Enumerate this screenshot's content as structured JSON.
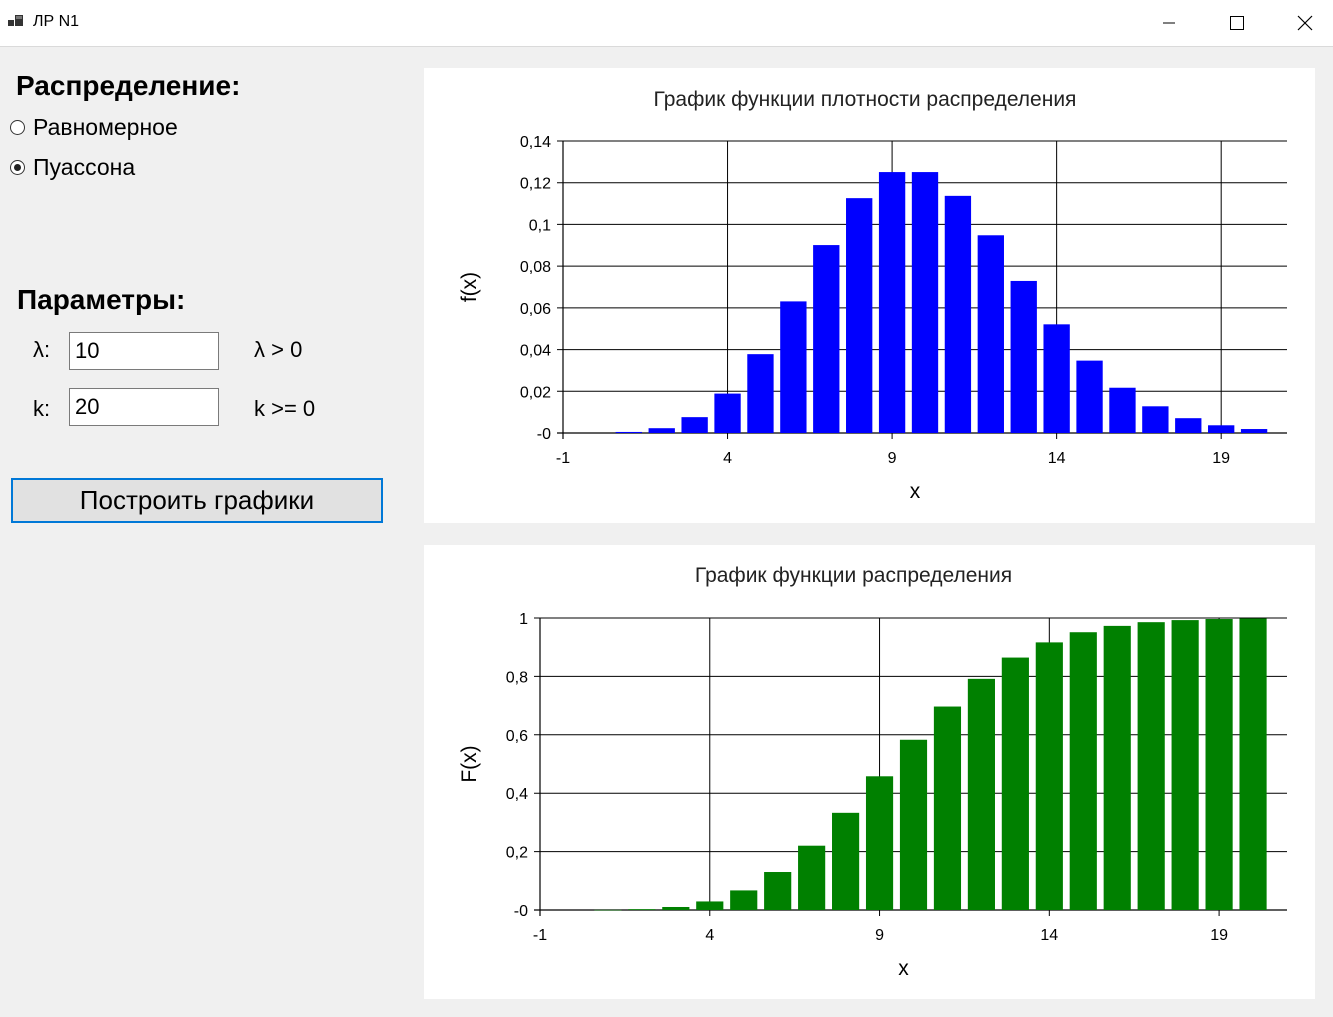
{
  "window": {
    "title": "ЛР N1"
  },
  "distribution": {
    "heading": "Распределение:",
    "options": [
      {
        "label": "Равномерное",
        "checked": false
      },
      {
        "label": "Пуассона",
        "checked": true
      }
    ]
  },
  "params": {
    "heading": "Параметры:",
    "lambda": {
      "label": "λ:",
      "value": "10",
      "hint": "λ > 0"
    },
    "k": {
      "label": "k:",
      "value": "20",
      "hint": "k >= 0"
    }
  },
  "build_button": "Построить графики",
  "charts": [
    {
      "type": "bar",
      "title": "График функции плотности распределения",
      "xlabel": "x",
      "ylabel": "f(x)",
      "color": "#0000ff",
      "x": [
        1,
        2,
        3,
        4,
        5,
        6,
        7,
        8,
        9,
        10,
        11,
        12,
        13,
        14,
        15,
        16,
        17,
        18,
        19,
        20
      ],
      "values": [
        0.0005,
        0.0023,
        0.0076,
        0.0189,
        0.0378,
        0.0631,
        0.0901,
        0.1126,
        0.1251,
        0.1251,
        0.1137,
        0.0948,
        0.0729,
        0.0521,
        0.0347,
        0.0217,
        0.0128,
        0.0071,
        0.0037,
        0.0019
      ],
      "xlim": [
        -1,
        21
      ],
      "ylim": [
        0,
        0.14
      ],
      "xticks": [
        -1,
        4,
        9,
        14,
        19
      ],
      "yticks": [
        0,
        0.02,
        0.04,
        0.06,
        0.08,
        0.1,
        0.12,
        0.14
      ],
      "ytick_labels": [
        "-0",
        "0,02",
        "0,04",
        "0,06",
        "0,08",
        "0,1",
        "0,12",
        "0,14"
      ],
      "grid": true
    },
    {
      "type": "bar",
      "title": "График функции распределения",
      "xlabel": "x",
      "ylabel": "F(x)",
      "color": "#008000",
      "x": [
        1,
        2,
        3,
        4,
        5,
        6,
        7,
        8,
        9,
        10,
        11,
        12,
        13,
        14,
        15,
        16,
        17,
        18,
        19,
        20
      ],
      "values": [
        0.0005,
        0.0028,
        0.0103,
        0.0293,
        0.0671,
        0.1301,
        0.2202,
        0.3328,
        0.4579,
        0.583,
        0.6968,
        0.7916,
        0.8645,
        0.9165,
        0.9513,
        0.973,
        0.9857,
        0.9928,
        0.9965,
        0.9984
      ],
      "xlim": [
        -1,
        21
      ],
      "ylim": [
        0,
        1
      ],
      "xticks": [
        -1,
        4,
        9,
        14,
        19
      ],
      "yticks": [
        0,
        0.2,
        0.4,
        0.6,
        0.8,
        1
      ],
      "ytick_labels": [
        "-0",
        "0,2",
        "0,4",
        "0,6",
        "0,8",
        "1"
      ],
      "grid": true
    }
  ],
  "chart_data": [
    {
      "type": "bar",
      "title": "График функции плотности распределения",
      "xlabel": "x",
      "ylabel": "f(x)",
      "x": [
        1,
        2,
        3,
        4,
        5,
        6,
        7,
        8,
        9,
        10,
        11,
        12,
        13,
        14,
        15,
        16,
        17,
        18,
        19,
        20
      ],
      "series": [
        {
          "values": [
            0.0005,
            0.0023,
            0.0076,
            0.0189,
            0.0378,
            0.0631,
            0.0901,
            0.1126,
            0.1251,
            0.1251,
            0.1137,
            0.0948,
            0.0729,
            0.0521,
            0.0347,
            0.0217,
            0.0128,
            0.0071,
            0.0037,
            0.0019
          ]
        }
      ],
      "xlim": [
        -1,
        21
      ],
      "ylim": [
        0,
        0.14
      ],
      "grid": true
    },
    {
      "type": "bar",
      "title": "График функции распределения",
      "xlabel": "x",
      "ylabel": "F(x)",
      "x": [
        1,
        2,
        3,
        4,
        5,
        6,
        7,
        8,
        9,
        10,
        11,
        12,
        13,
        14,
        15,
        16,
        17,
        18,
        19,
        20
      ],
      "series": [
        {
          "values": [
            0.0005,
            0.0028,
            0.0103,
            0.0293,
            0.0671,
            0.1301,
            0.2202,
            0.3328,
            0.4579,
            0.583,
            0.6968,
            0.7916,
            0.8645,
            0.9165,
            0.9513,
            0.973,
            0.9857,
            0.9928,
            0.9965,
            0.9984
          ]
        }
      ],
      "xlim": [
        -1,
        21
      ],
      "ylim": [
        0,
        1
      ],
      "grid": true
    }
  ]
}
